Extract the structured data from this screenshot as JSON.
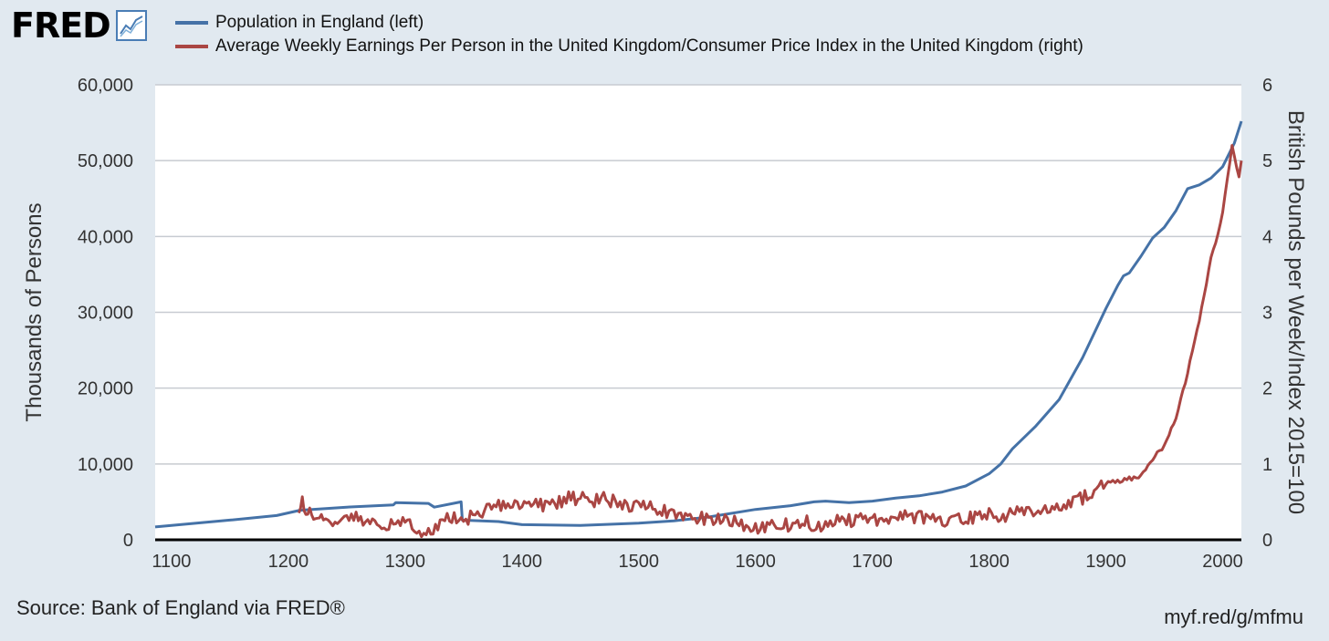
{
  "branding": {
    "logo_text": "FRED",
    "logo_icon": "line-chart-icon"
  },
  "legend": [
    {
      "label": "Population in England (left)",
      "color": "#4572a7"
    },
    {
      "label": "Average Weekly Earnings Per Person in the United Kingdom/Consumer Price Index in the United Kingdom (right)",
      "color": "#aa4643"
    }
  ],
  "source": "Source: Bank of England via FRED®",
  "short_url": "myf.red/g/mfmu",
  "chart_data": {
    "type": "line",
    "title": "",
    "xlabel": "",
    "ylabel_left": "Thousands of Persons",
    "ylabel_right": "British Pounds per Week/Index 2015=100",
    "xlim": [
      1086,
      2016
    ],
    "ylim_left": [
      0,
      60000
    ],
    "ylim_right": [
      0,
      6
    ],
    "x_ticks": [
      "1100",
      "1200",
      "1300",
      "1400",
      "1500",
      "1600",
      "1700",
      "1800",
      "1900",
      "2000"
    ],
    "y_ticks_left": [
      "0",
      "10,000",
      "20,000",
      "30,000",
      "40,000",
      "50,000",
      "60,000"
    ],
    "y_ticks_right": [
      "0",
      "1",
      "2",
      "3",
      "4",
      "5",
      "6"
    ],
    "grid": true,
    "series": [
      {
        "name": "Population in England (left)",
        "axis": "left",
        "color": "#4572a7",
        "points": [
          [
            1086,
            1700
          ],
          [
            1100,
            1900
          ],
          [
            1150,
            2600
          ],
          [
            1190,
            3200
          ],
          [
            1210,
            3900
          ],
          [
            1250,
            4300
          ],
          [
            1290,
            4600
          ],
          [
            1292,
            4900
          ],
          [
            1320,
            4800
          ],
          [
            1325,
            4300
          ],
          [
            1348,
            5000
          ],
          [
            1349,
            2600
          ],
          [
            1380,
            2400
          ],
          [
            1400,
            2000
          ],
          [
            1450,
            1900
          ],
          [
            1500,
            2200
          ],
          [
            1530,
            2500
          ],
          [
            1560,
            3000
          ],
          [
            1600,
            4000
          ],
          [
            1630,
            4500
          ],
          [
            1650,
            5000
          ],
          [
            1660,
            5100
          ],
          [
            1680,
            4900
          ],
          [
            1700,
            5100
          ],
          [
            1720,
            5500
          ],
          [
            1740,
            5800
          ],
          [
            1760,
            6300
          ],
          [
            1780,
            7100
          ],
          [
            1800,
            8700
          ],
          [
            1810,
            10000
          ],
          [
            1820,
            12000
          ],
          [
            1840,
            15000
          ],
          [
            1860,
            18500
          ],
          [
            1880,
            24000
          ],
          [
            1900,
            30500
          ],
          [
            1910,
            33500
          ],
          [
            1915,
            34800
          ],
          [
            1920,
            35200
          ],
          [
            1930,
            37400
          ],
          [
            1940,
            39800
          ],
          [
            1950,
            41200
          ],
          [
            1960,
            43400
          ],
          [
            1970,
            46300
          ],
          [
            1980,
            46800
          ],
          [
            1990,
            47700
          ],
          [
            2000,
            49200
          ],
          [
            2010,
            52300
          ],
          [
            2016,
            55200
          ]
        ]
      },
      {
        "name": "Average Weekly Earnings Per Person in the United Kingdom/Consumer Price Index in the United Kingdom (right)",
        "axis": "right",
        "color": "#aa4643",
        "points": [
          [
            1209,
            0.35
          ],
          [
            1212,
            0.5
          ],
          [
            1215,
            0.25
          ],
          [
            1220,
            0.4
          ],
          [
            1225,
            0.2
          ],
          [
            1230,
            0.3
          ],
          [
            1240,
            0.25
          ],
          [
            1250,
            0.35
          ],
          [
            1260,
            0.3
          ],
          [
            1270,
            0.2
          ],
          [
            1280,
            0.15
          ],
          [
            1290,
            0.2
          ],
          [
            1300,
            0.25
          ],
          [
            1310,
            0.15
          ],
          [
            1320,
            0.1
          ],
          [
            1330,
            0.2
          ],
          [
            1340,
            0.3
          ],
          [
            1350,
            0.25
          ],
          [
            1360,
            0.35
          ],
          [
            1370,
            0.4
          ],
          [
            1380,
            0.45
          ],
          [
            1390,
            0.45
          ],
          [
            1400,
            0.45
          ],
          [
            1410,
            0.5
          ],
          [
            1420,
            0.45
          ],
          [
            1430,
            0.5
          ],
          [
            1440,
            0.55
          ],
          [
            1450,
            0.55
          ],
          [
            1460,
            0.5
          ],
          [
            1470,
            0.55
          ],
          [
            1480,
            0.5
          ],
          [
            1490,
            0.45
          ],
          [
            1500,
            0.5
          ],
          [
            1510,
            0.45
          ],
          [
            1520,
            0.4
          ],
          [
            1530,
            0.35
          ],
          [
            1540,
            0.35
          ],
          [
            1550,
            0.3
          ],
          [
            1560,
            0.25
          ],
          [
            1570,
            0.3
          ],
          [
            1580,
            0.25
          ],
          [
            1590,
            0.2
          ],
          [
            1600,
            0.15
          ],
          [
            1610,
            0.15
          ],
          [
            1620,
            0.2
          ],
          [
            1630,
            0.2
          ],
          [
            1640,
            0.25
          ],
          [
            1650,
            0.2
          ],
          [
            1660,
            0.2
          ],
          [
            1670,
            0.25
          ],
          [
            1680,
            0.25
          ],
          [
            1690,
            0.3
          ],
          [
            1700,
            0.25
          ],
          [
            1710,
            0.25
          ],
          [
            1720,
            0.3
          ],
          [
            1730,
            0.3
          ],
          [
            1740,
            0.3
          ],
          [
            1750,
            0.3
          ],
          [
            1760,
            0.25
          ],
          [
            1770,
            0.25
          ],
          [
            1780,
            0.3
          ],
          [
            1790,
            0.3
          ],
          [
            1800,
            0.35
          ],
          [
            1810,
            0.3
          ],
          [
            1820,
            0.35
          ],
          [
            1830,
            0.35
          ],
          [
            1840,
            0.4
          ],
          [
            1850,
            0.4
          ],
          [
            1860,
            0.45
          ],
          [
            1870,
            0.5
          ],
          [
            1880,
            0.55
          ],
          [
            1890,
            0.65
          ],
          [
            1900,
            0.75
          ],
          [
            1910,
            0.78
          ],
          [
            1920,
            0.8
          ],
          [
            1930,
            0.85
          ],
          [
            1940,
            1.05
          ],
          [
            1950,
            1.25
          ],
          [
            1960,
            1.6
          ],
          [
            1970,
            2.2
          ],
          [
            1980,
            2.9
          ],
          [
            1990,
            3.7
          ],
          [
            2000,
            4.3
          ],
          [
            2008,
            5.2
          ],
          [
            2012,
            4.9
          ],
          [
            2014,
            4.8
          ],
          [
            2016,
            5.0
          ]
        ]
      }
    ]
  }
}
